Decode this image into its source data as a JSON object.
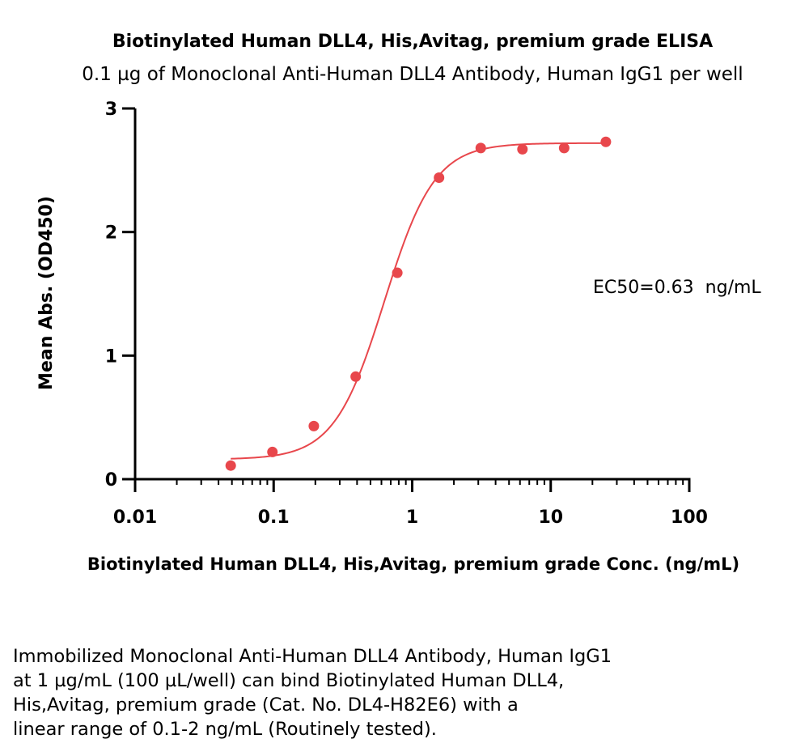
{
  "chart_data": {
    "type": "scatter",
    "title": "Biotinylated Human DLL4, His,Avitag, premium grade ELISA",
    "subtitle": "0.1 µg of Monoclonal Anti-Human DLL4 Antibody, Human IgG1 per well",
    "xlabel": "Biotinylated Human DLL4, His,Avitag, premium grade Conc. (ng/mL)",
    "ylabel": "Mean Abs. (OD450)",
    "x_scale": "log",
    "xlim": [
      0.01,
      100
    ],
    "ylim": [
      0,
      3
    ],
    "x_ticks": [
      "0.01",
      "0.1",
      "1",
      "10",
      "100"
    ],
    "y_ticks": [
      "0",
      "1",
      "2",
      "3"
    ],
    "grid": false,
    "series": [
      {
        "x": [
          0.049,
          0.098,
          0.195,
          0.391,
          0.781,
          1.5625,
          3.125,
          6.25,
          12.5,
          25
        ],
        "y": [
          0.11,
          0.22,
          0.43,
          0.83,
          1.67,
          2.44,
          2.68,
          2.67,
          2.68,
          2.73
        ],
        "color": "#e8474c"
      }
    ],
    "fit_curve": {
      "model": "4PL",
      "bottom": 0.16,
      "top": 2.72,
      "ec50": 0.63,
      "hill": 2.4,
      "color": "#e8474c"
    },
    "annotations": [
      {
        "text": "EC50=0.63  ng/mL"
      }
    ]
  },
  "caption": [
    "Immobilized Monoclonal Anti-Human DLL4 Antibody, Human IgG1",
    "at 1 µg/mL (100 µL/well) can bind Biotinylated Human DLL4,",
    "His,Avitag, premium grade (Cat. No. DL4-H82E6) with a",
    "linear range of 0.1-2 ng/mL (Routinely tested)."
  ]
}
